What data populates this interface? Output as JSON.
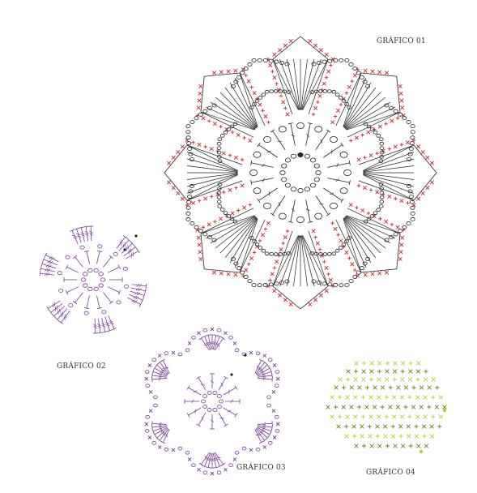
{
  "labels": {
    "g01": "GRÁFICO 01",
    "g02": "GRÁFICO 02",
    "g03": "GRÁFICO 03",
    "g04": "GRÁFICO 04"
  },
  "colors": {
    "ink": "#222222",
    "red": "#d0262a",
    "purple": "#7a3c9a",
    "green_dark": "#5c8a1e",
    "green_light": "#b5d334"
  },
  "charts": [
    {
      "id": "g01",
      "petals": 8,
      "style": "black-red"
    },
    {
      "id": "g02",
      "style": "purple-round"
    },
    {
      "id": "g03",
      "petals": 6,
      "style": "purple-flower"
    },
    {
      "id": "g04",
      "style": "green-leaf"
    }
  ]
}
